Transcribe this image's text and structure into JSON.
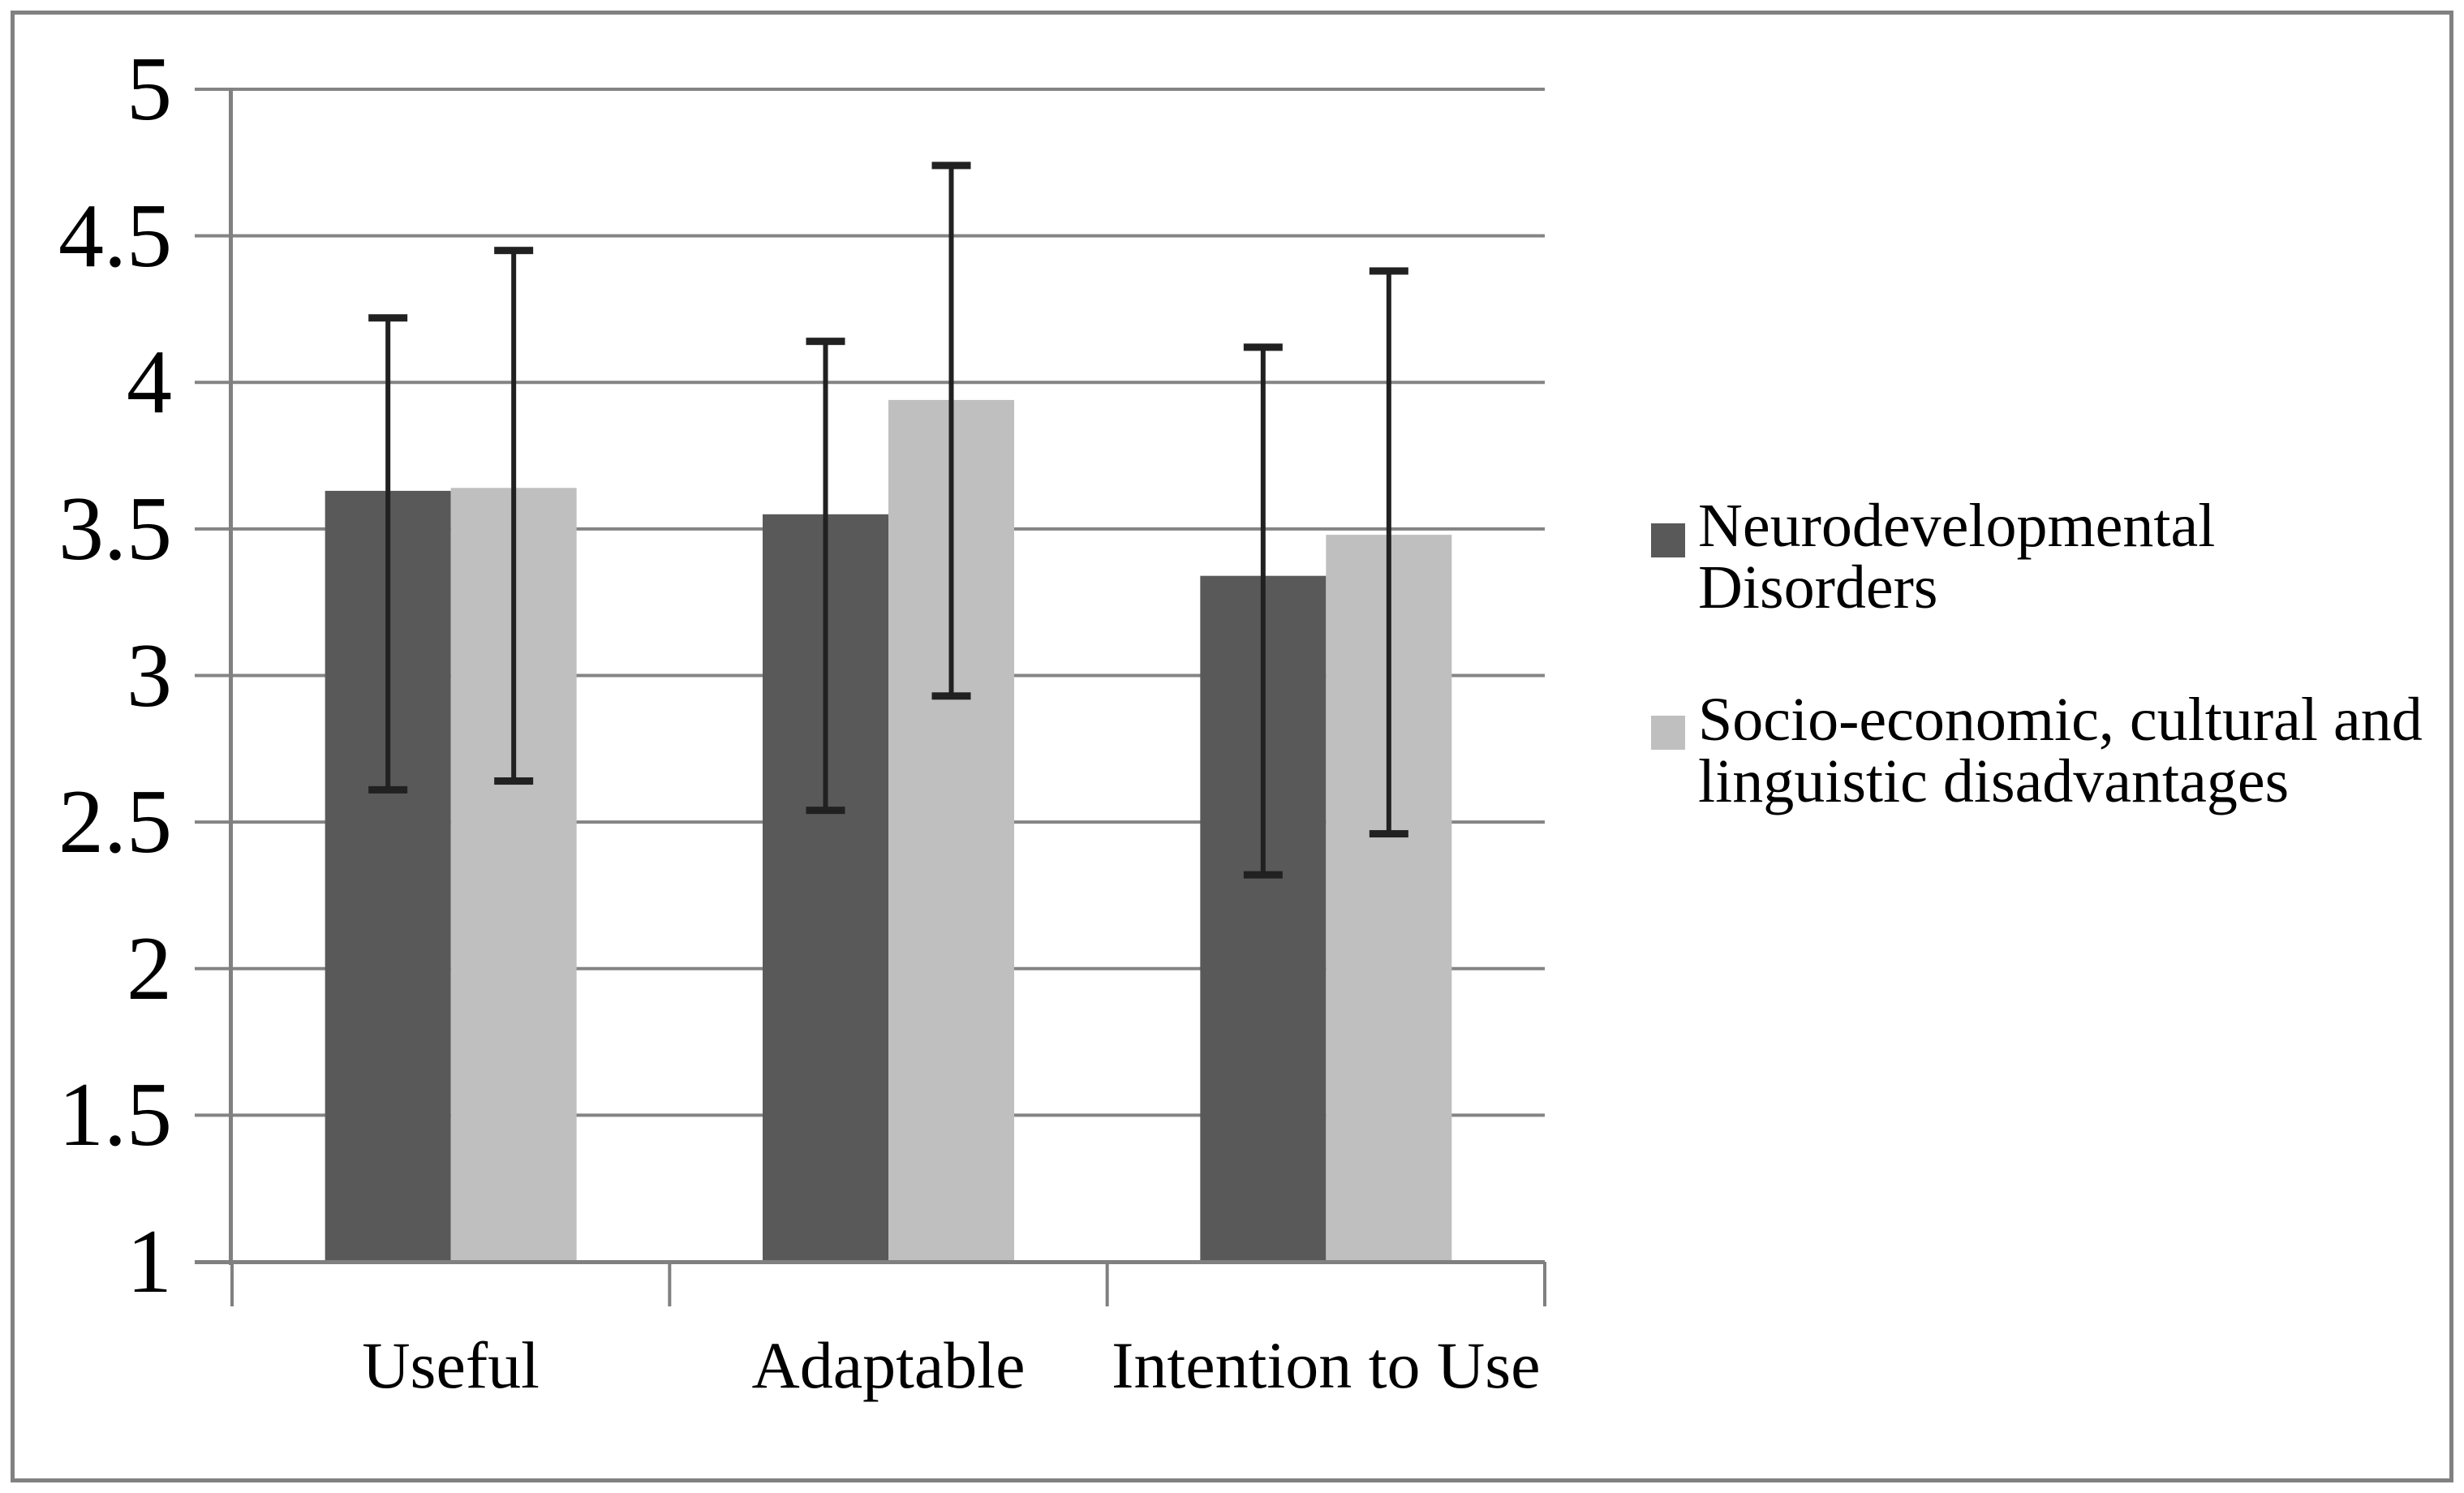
{
  "chart_data": {
    "type": "bar",
    "title": "",
    "categories": [
      "Useful",
      "Adaptable",
      "Intention to Use"
    ],
    "series": [
      {
        "name": "Neurodevelopmental Disorders",
        "color": "#595959",
        "values": [
          3.63,
          3.55,
          3.34
        ],
        "error_high": [
          4.22,
          4.14,
          4.12
        ],
        "error_low": [
          2.61,
          2.54,
          2.32
        ]
      },
      {
        "name": "Socio-economic, cultural and linguistic disadvantages",
        "color": "#bfbfbf",
        "values": [
          3.64,
          3.94,
          3.48
        ],
        "error_high": [
          4.45,
          4.74,
          4.38
        ],
        "error_low": [
          2.64,
          2.93,
          2.46
        ]
      }
    ],
    "xlabel": "",
    "ylabel": "",
    "y_axis": {
      "min": 1,
      "max": 5,
      "step": 0.5,
      "ticks": [
        "5",
        "4.5",
        "4",
        "3.5",
        "3",
        "2.5",
        "2",
        "1.5",
        "1"
      ]
    },
    "grid": true,
    "legend_position": "right",
    "error_bar_color": "#212121",
    "axis_color": "#808080",
    "gridline_color": "#848484"
  }
}
